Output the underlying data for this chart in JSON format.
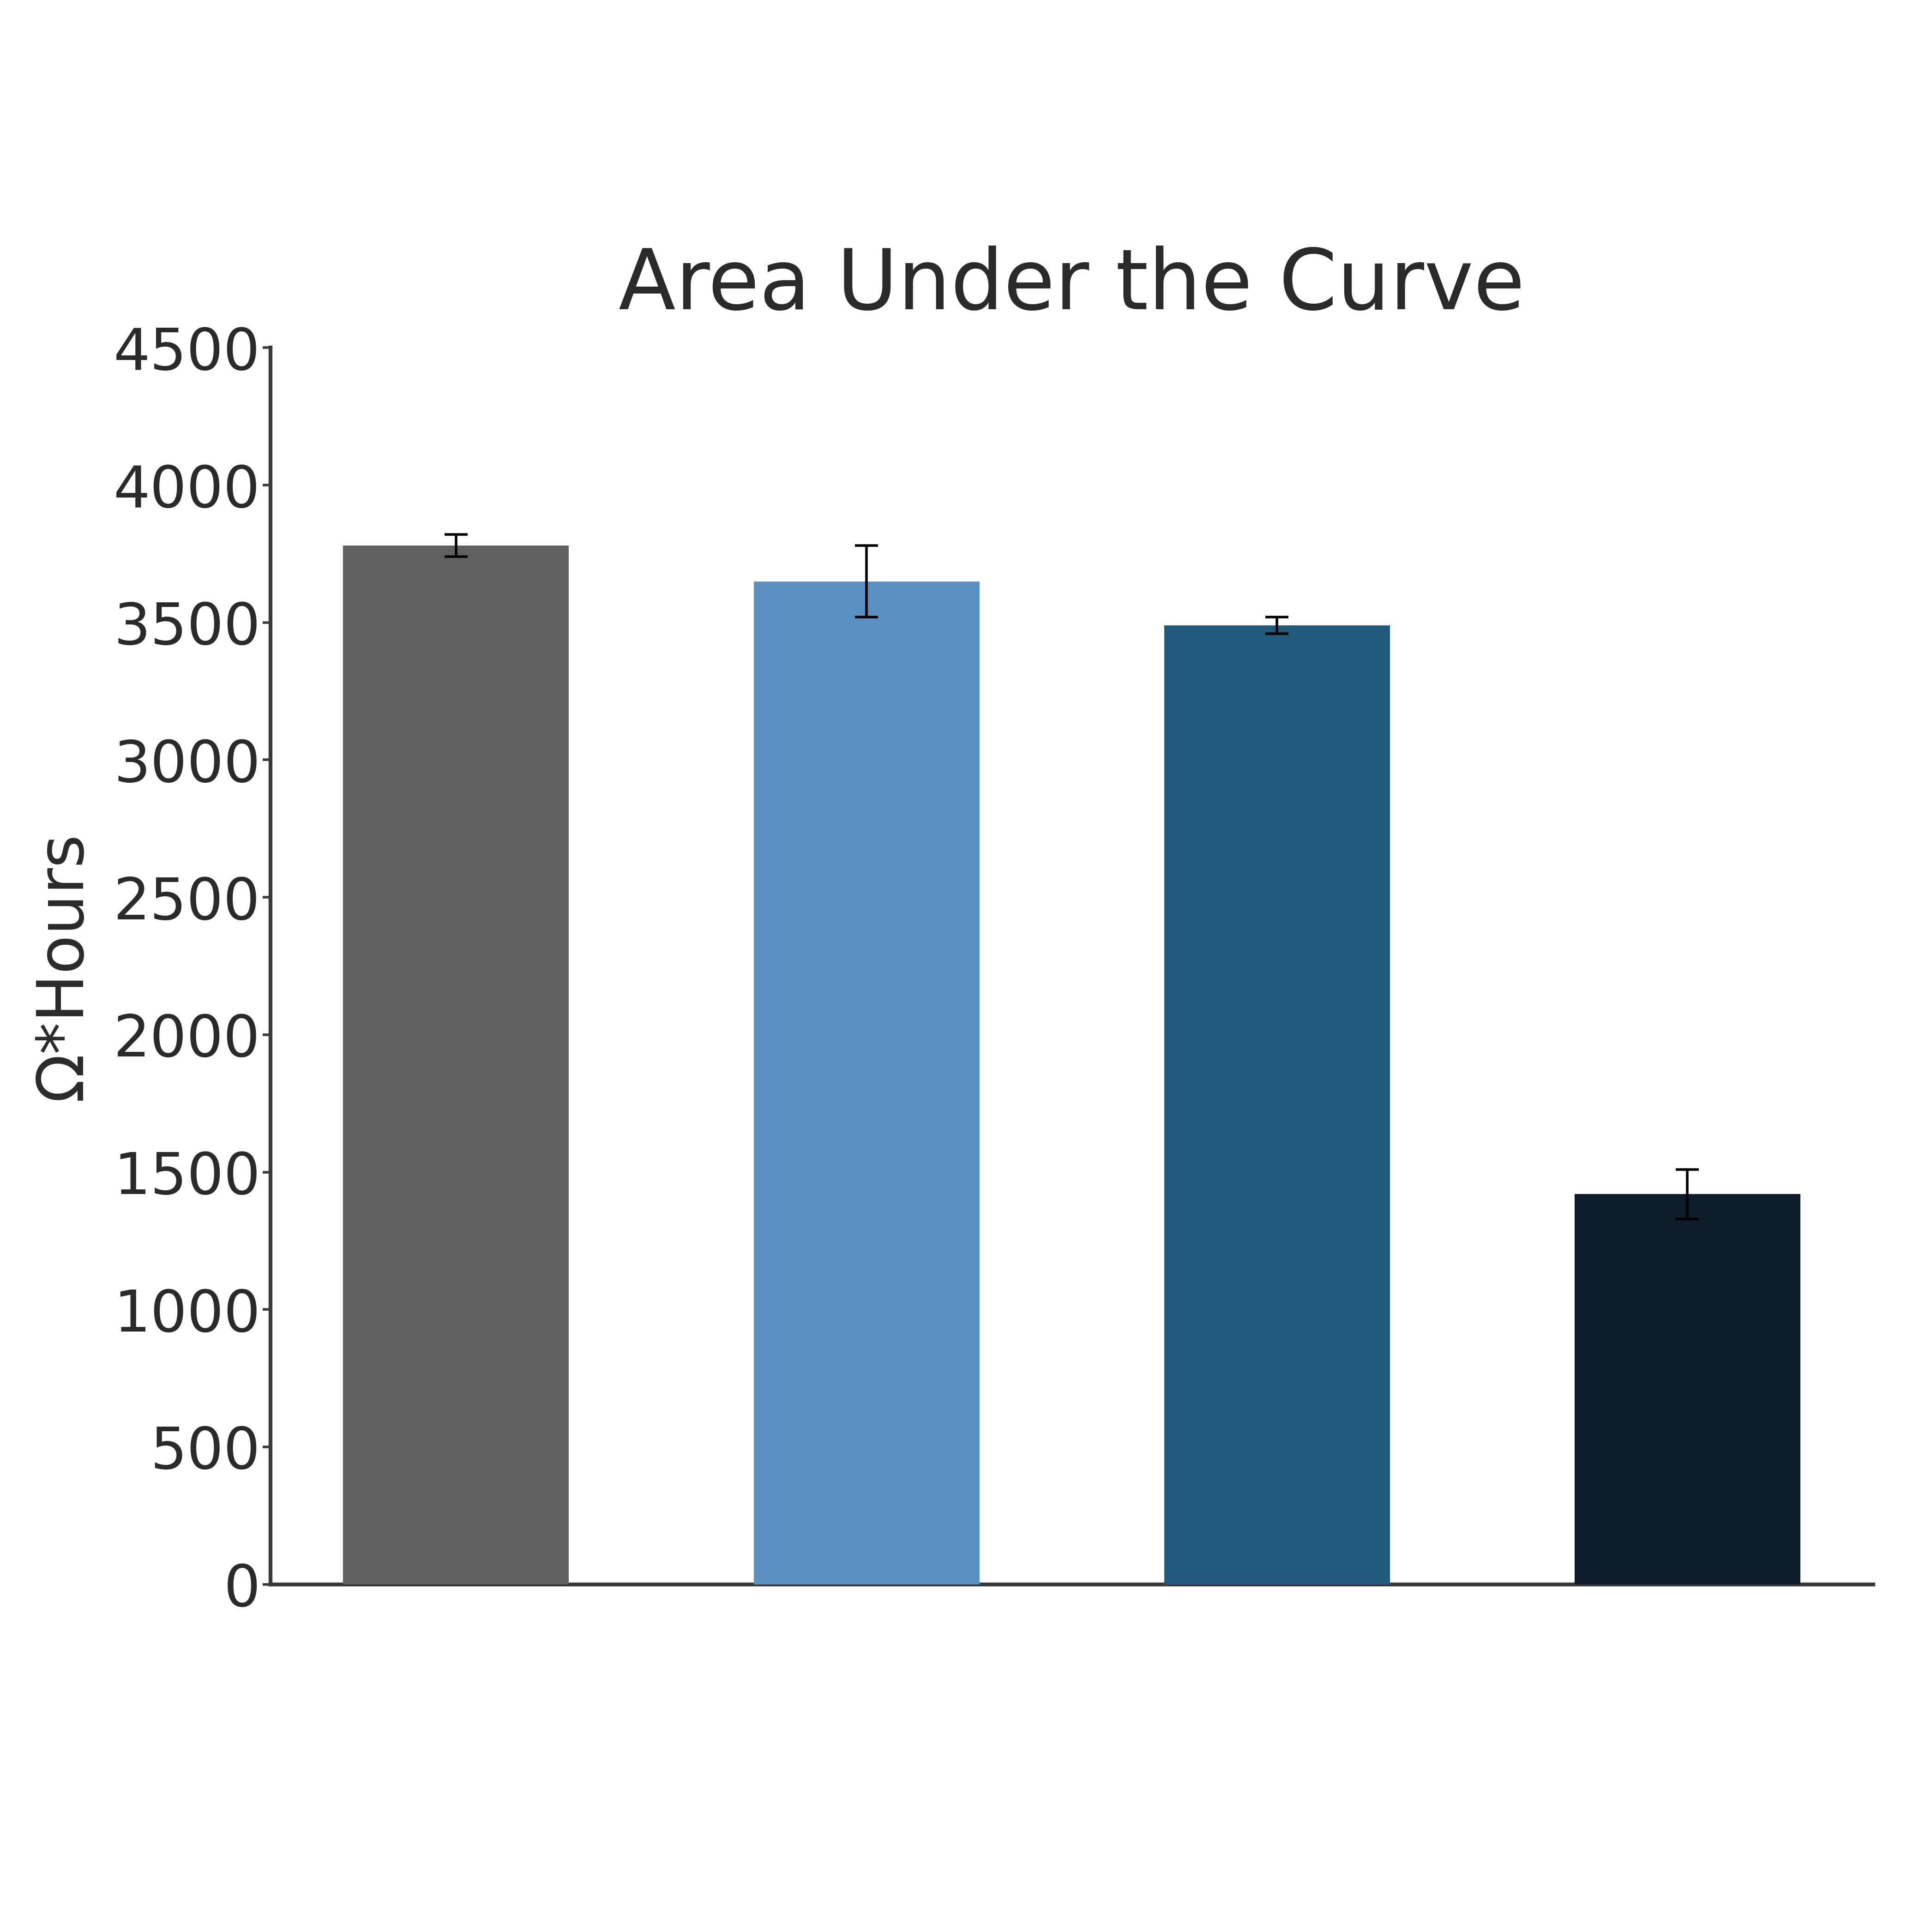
{
  "title": "Area Under the Curve",
  "ylabel": "Ω*Hours",
  "bar_values": [
    3780,
    3650,
    3490,
    1420
  ],
  "bar_errors": [
    40,
    130,
    30,
    90
  ],
  "bar_colors": [
    "#606060",
    "#5b92c4",
    "#1f5a7a",
    "#0d1b2a"
  ],
  "ylim": [
    0,
    4500
  ],
  "yticks": [
    0,
    500,
    1000,
    1500,
    2000,
    2500,
    3000,
    3500,
    4000,
    4500
  ],
  "bar_width": 0.55,
  "x_positions": [
    0,
    1,
    2,
    3
  ],
  "title_fontsize": 130,
  "ylabel_fontsize": 100,
  "tick_fontsize": 90,
  "error_capsize": 18,
  "error_linewidth": 4,
  "background_color": "#ffffff",
  "spine_color": "#3a3a3a",
  "spine_linewidth": 6
}
